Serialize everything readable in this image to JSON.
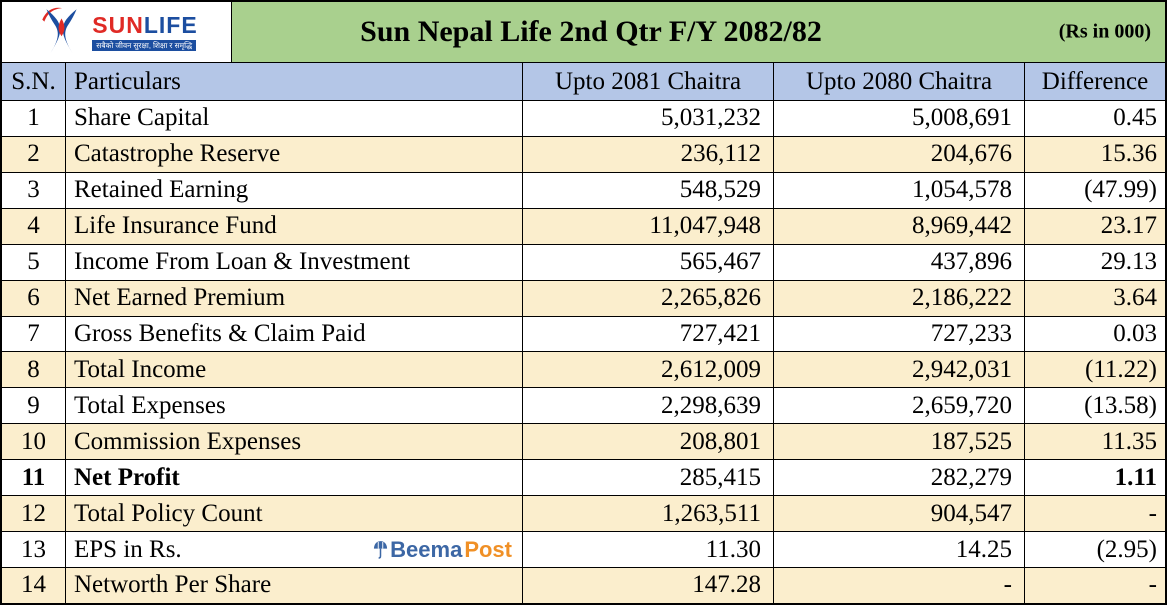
{
  "header": {
    "logo": {
      "brand_sun": "SUN",
      "brand_life": "LIFE",
      "tagline": "सबैको जीवन सुरक्षा, शिक्षा र समृद्धि"
    },
    "title": "Sun Nepal Life 2nd Qtr F/Y 2082/82",
    "unit_note": "(Rs in 000)"
  },
  "table": {
    "columns": [
      "S.N.",
      "Particulars",
      "Upto 2081 Chaitra",
      "Upto 2080 Chaitra",
      "Difference"
    ],
    "rows": [
      {
        "sn": "1",
        "particular": "Share Capital",
        "upto_2081": "5,031,232",
        "upto_2080": "5,008,691",
        "difference": "0.45"
      },
      {
        "sn": "2",
        "particular": "Catastrophe Reserve",
        "upto_2081": "236,112",
        "upto_2080": "204,676",
        "difference": "15.36"
      },
      {
        "sn": "3",
        "particular": "Retained Earning",
        "upto_2081": "548,529",
        "upto_2080": "1,054,578",
        "difference": "(47.99)"
      },
      {
        "sn": "4",
        "particular": "Life Insurance Fund",
        "upto_2081": "11,047,948",
        "upto_2080": "8,969,442",
        "difference": "23.17"
      },
      {
        "sn": "5",
        "particular": "Income From Loan & Investment",
        "upto_2081": "565,467",
        "upto_2080": "437,896",
        "difference": "29.13"
      },
      {
        "sn": "6",
        "particular": "Net Earned Premium",
        "upto_2081": "2,265,826",
        "upto_2080": "2,186,222",
        "difference": "3.64"
      },
      {
        "sn": "7",
        "particular": "Gross Benefits & Claim Paid",
        "upto_2081": "727,421",
        "upto_2080": "727,233",
        "difference": "0.03"
      },
      {
        "sn": "8",
        "particular": "Total Income",
        "upto_2081": "2,612,009",
        "upto_2080": "2,942,031",
        "difference": "(11.22)"
      },
      {
        "sn": "9",
        "particular": "Total Expenses",
        "upto_2081": "2,298,639",
        "upto_2080": "2,659,720",
        "difference": "(13.58)"
      },
      {
        "sn": "10",
        "particular": "Commission Expenses",
        "upto_2081": "208,801",
        "upto_2080": "187,525",
        "difference": "11.35"
      },
      {
        "sn": "11",
        "particular": "Net Profit",
        "upto_2081": "285,415",
        "upto_2080": "282,279",
        "difference": "1.11",
        "bold": true
      },
      {
        "sn": "12",
        "particular": "Total Policy Count",
        "upto_2081": "1,263,511",
        "upto_2080": "904,547",
        "difference": "-"
      },
      {
        "sn": "13",
        "particular": "EPS in Rs.",
        "upto_2081": "11.30",
        "upto_2080": "14.25",
        "difference": "(2.95)",
        "watermark": true
      },
      {
        "sn": "14",
        "particular": "Networth Per Share",
        "upto_2081": "147.28",
        "upto_2080": "-",
        "difference": "-"
      }
    ]
  },
  "watermark": {
    "beema": "Beema",
    "post": "Post"
  },
  "colors": {
    "banner_green": "#a9d08e",
    "header_blue": "#b4c6e7",
    "row_cream": "#fbeecd",
    "logo_red": "#e02a25",
    "logo_blue": "#1c4ea0",
    "beema_blue": "#3c67a5",
    "beema_orange": "#f09026"
  }
}
